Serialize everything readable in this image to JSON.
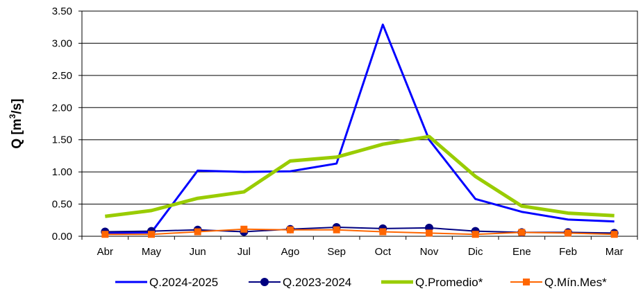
{
  "chart_data": {
    "type": "line",
    "categories": [
      "Abr",
      "May",
      "Jun",
      "Jul",
      "Ago",
      "Sep",
      "Oct",
      "Nov",
      "Dic",
      "Ene",
      "Feb",
      "Mar"
    ],
    "ylabel_main": "Q [m",
    "ylabel_sup": "3",
    "ylabel_end": "/s]",
    "ylim": [
      0,
      3.5
    ],
    "yticks": [
      "0.00",
      "0.50",
      "1.00",
      "1.50",
      "2.00",
      "2.50",
      "3.00",
      "3.50"
    ],
    "grid": true,
    "legend_position": "bottom",
    "series": [
      {
        "name": "Q.2024-2025",
        "color": "#0000ff",
        "marker": "none",
        "width": 3,
        "values": [
          0.05,
          0.06,
          1.02,
          1.0,
          1.01,
          1.13,
          3.29,
          1.5,
          0.58,
          0.38,
          0.26,
          0.23
        ]
      },
      {
        "name": "Q.2023-2024",
        "color": "#000080",
        "marker": "circle",
        "width": 2,
        "values": [
          0.07,
          0.08,
          0.1,
          0.07,
          0.11,
          0.14,
          0.12,
          0.13,
          0.08,
          0.06,
          0.06,
          0.05
        ]
      },
      {
        "name": "Q.Promedio*",
        "color": "#99cc00",
        "marker": "none",
        "width": 5,
        "values": [
          0.31,
          0.4,
          0.59,
          0.69,
          1.17,
          1.23,
          1.43,
          1.55,
          0.93,
          0.47,
          0.36,
          0.32
        ]
      },
      {
        "name": "Q.Mín.Mes*",
        "color": "#ff6600",
        "marker": "square",
        "width": 2,
        "values": [
          0.03,
          0.03,
          0.07,
          0.11,
          0.1,
          0.1,
          0.07,
          0.05,
          0.03,
          0.06,
          0.05,
          0.03
        ]
      }
    ]
  }
}
